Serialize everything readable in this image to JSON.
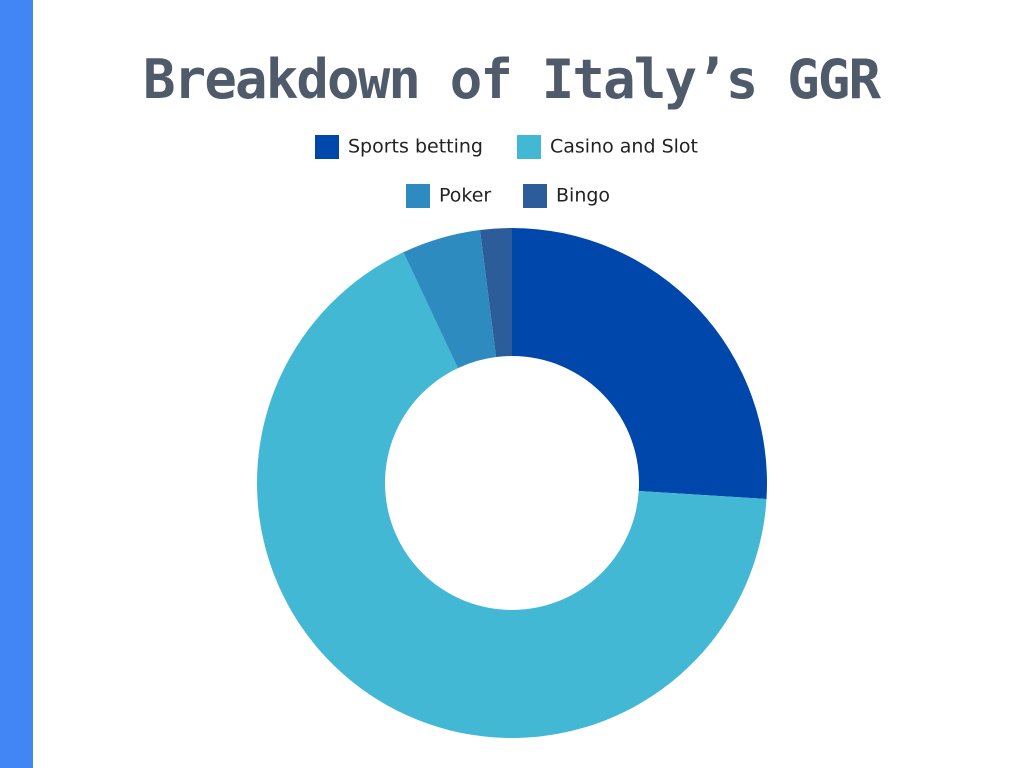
{
  "chart_data": {
    "type": "donut",
    "title": "Breakdown of Italy’s GGR",
    "categories": [
      "Sports betting",
      "Casino and Slot",
      "Poker",
      "Bingo"
    ],
    "values": [
      26,
      67,
      5,
      2
    ],
    "colors": [
      "#0047ab",
      "#42b8d5",
      "#2e8bc0",
      "#2d5c9a"
    ]
  }
}
